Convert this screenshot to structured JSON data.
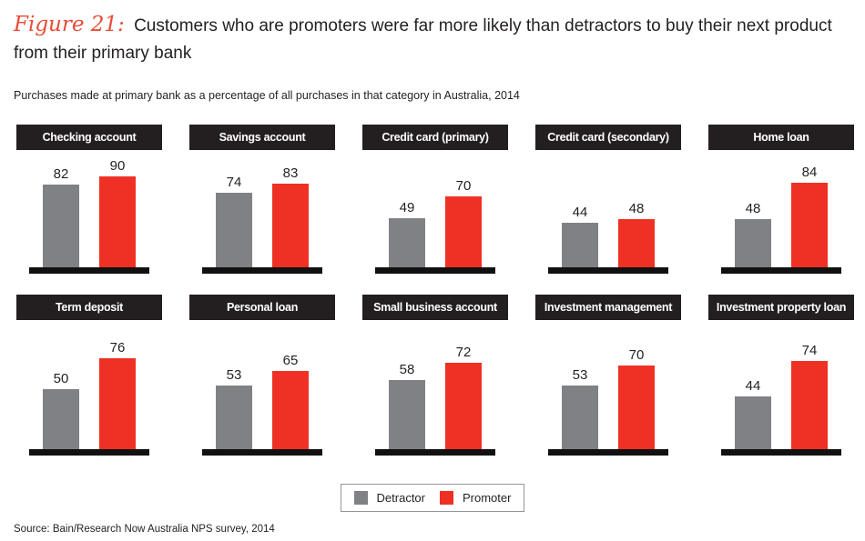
{
  "title": {
    "figure_label": "Figure 21:",
    "text": "Customers who are promoters were far more likely than detractors to buy their next product from their primary bank"
  },
  "subtitle": "Purchases made at primary bank as a percentage of all purchases in that category in Australia, 2014",
  "legend": {
    "detractor_label": "Detractor",
    "promoter_label": "Promoter"
  },
  "source": "Source: Bain/Research Now Australia NPS survey, 2014",
  "colors": {
    "detractor": "#808184",
    "promoter": "#ee3124",
    "header_bg": "#231f20",
    "baseline": "#111111",
    "figure_label_red": "#e94b35"
  },
  "chart_data": {
    "type": "bar",
    "title": "Customers who are promoters were far more likely than detractors to buy their next product from their primary bank",
    "subtitle": "Purchases made at primary bank as a percentage of all purchases in that category in Australia, 2014",
    "series_names": [
      "Detractor",
      "Promoter"
    ],
    "value_unit": "percent of all purchases in category",
    "legend_position": "bottom-center",
    "grid": false,
    "categories": [
      "Checking account",
      "Savings account",
      "Credit card (primary)",
      "Credit card (secondary)",
      "Home loan",
      "Term deposit",
      "Personal loan",
      "Small business account",
      "Investment management",
      "Investment property loan"
    ],
    "rows": [
      {
        "scale_max": 90,
        "panels": [
          {
            "category": "Checking account",
            "detractor": 82,
            "promoter": 90
          },
          {
            "category": "Savings account",
            "detractor": 74,
            "promoter": 83
          },
          {
            "category": "Credit card (primary)",
            "detractor": 49,
            "promoter": 70
          },
          {
            "category": "Credit card (secondary)",
            "detractor": 44,
            "promoter": 48
          },
          {
            "category": "Home loan",
            "detractor": 48,
            "promoter": 84
          }
        ]
      },
      {
        "scale_max": 76,
        "panels": [
          {
            "category": "Term deposit",
            "detractor": 50,
            "promoter": 76
          },
          {
            "category": "Personal loan",
            "detractor": 53,
            "promoter": 65
          },
          {
            "category": "Small business account",
            "detractor": 58,
            "promoter": 72
          },
          {
            "category": "Investment management",
            "detractor": 53,
            "promoter": 70
          },
          {
            "category": "Investment property loan",
            "detractor": 44,
            "promoter": 74
          }
        ]
      }
    ]
  }
}
